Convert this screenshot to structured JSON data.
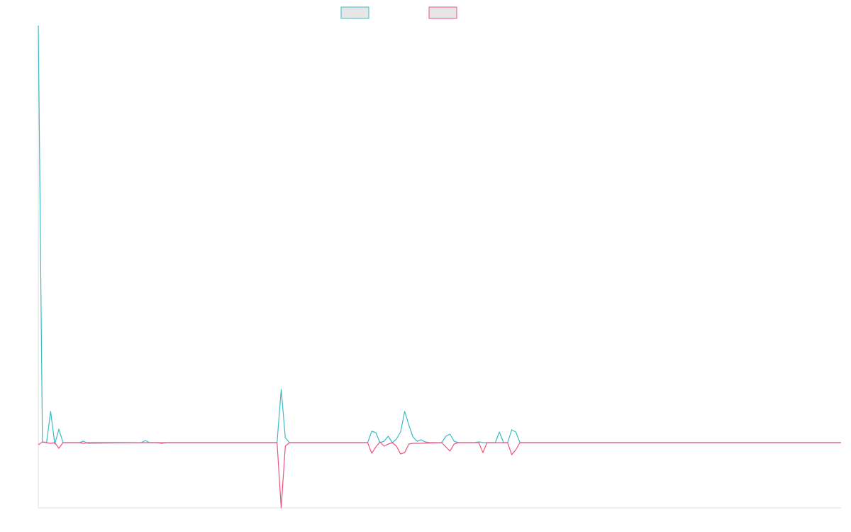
{
  "chart_data": {
    "type": "line",
    "xlim": [
      0,
      195
    ],
    "ylim": [
      -9.2,
      58.8
    ],
    "series": [
      {
        "color": "#3cbac6",
        "x": [
          0,
          1,
          2,
          3,
          4,
          5,
          6,
          10,
          11,
          12,
          25,
          26,
          27,
          58,
          59,
          60,
          61,
          80,
          81,
          82,
          83,
          84,
          85,
          86,
          87,
          88,
          89,
          90,
          91,
          92,
          93,
          94,
          95,
          98,
          99,
          100,
          101,
          102,
          106,
          107,
          108,
          111,
          112,
          113,
          114,
          115,
          116,
          117,
          195
        ],
        "values": [
          58.8,
          0.1,
          0,
          4.4,
          -0.2,
          1.9,
          0,
          0,
          0.2,
          -0.1,
          0,
          0.3,
          0,
          0,
          7.5,
          0.7,
          0,
          0,
          1.6,
          1.4,
          0,
          0.2,
          0.9,
          0,
          0.5,
          1.5,
          4.4,
          2.5,
          0.8,
          0.2,
          0.4,
          0.1,
          0,
          0,
          0.9,
          1.2,
          0.2,
          0,
          0,
          0.1,
          0,
          0,
          1.5,
          0,
          0,
          1.8,
          1.5,
          0,
          0
        ]
      },
      {
        "color": "#f0527a",
        "x": [
          0,
          1,
          2,
          3,
          4,
          5,
          6,
          10,
          11,
          12,
          29,
          30,
          31,
          58,
          59,
          60,
          61,
          80,
          81,
          82,
          83,
          84,
          85,
          86,
          87,
          88,
          89,
          90,
          91,
          92,
          98,
          99,
          100,
          101,
          102,
          107,
          108,
          109,
          114,
          115,
          116,
          117,
          195
        ],
        "values": [
          -0.3,
          0.1,
          0,
          -0.1,
          0,
          -0.8,
          0,
          0,
          -0.1,
          0,
          0,
          -0.1,
          0,
          0,
          -9.2,
          -0.5,
          0,
          0,
          -1.5,
          -0.6,
          0.1,
          -0.5,
          -0.2,
          0,
          -0.5,
          -1.6,
          -1.4,
          -0.2,
          -0.1,
          -0.1,
          0,
          -0.6,
          -1.2,
          -0.2,
          0,
          0,
          -1.4,
          0,
          0,
          -1.7,
          -1,
          0,
          0
        ]
      }
    ]
  }
}
